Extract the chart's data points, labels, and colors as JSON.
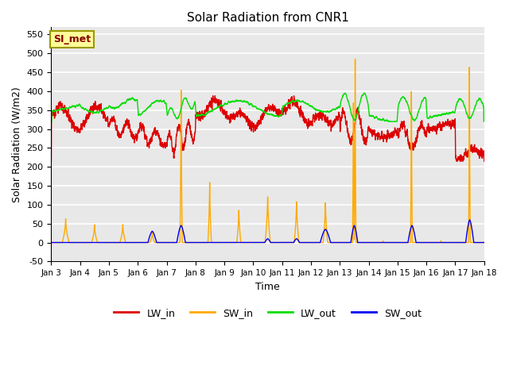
{
  "title": "Solar Radiation from CNR1",
  "xlabel": "Time",
  "ylabel": "Solar Radiation (W/m2)",
  "ylim": [
    -50,
    570
  ],
  "xlim": [
    0,
    15
  ],
  "background_color": "#d8d8d8",
  "plot_bg": "#e8e8e8",
  "grid_color": "white",
  "legend_label": "SI_met",
  "tick_labels": [
    "Jan 3",
    "Jan 4",
    "Jan 5",
    "Jan 6",
    "Jan 7",
    "Jan 8",
    "Jan 9",
    "Jan 10",
    "Jan 11",
    "Jan 12",
    "Jan 13",
    "Jan 14",
    "Jan 15",
    "Jan 16",
    "Jan 17",
    "Jan 18"
  ],
  "colors": {
    "LW_in": "#dd0000",
    "SW_in": "#ffaa00",
    "LW_out": "#00dd00",
    "SW_out": "#0000ee"
  },
  "linewidth": 1.0
}
